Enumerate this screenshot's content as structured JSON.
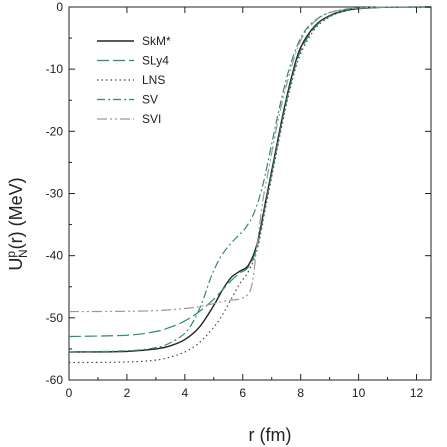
{
  "chart_data": {
    "type": "line",
    "title": "",
    "xlabel": "r (fm)",
    "ylabel_parts": {
      "base": "U",
      "sup": "p",
      "sub": "N",
      "rest": "(r) (MeV)"
    },
    "xlim": [
      0,
      12.5
    ],
    "ylim": [
      -60,
      0
    ],
    "x_ticks": [
      0,
      2,
      4,
      6,
      8,
      10,
      12
    ],
    "y_ticks": [
      0,
      -10,
      -20,
      -30,
      -40,
      -50,
      -60
    ],
    "grid": false,
    "legend_position": "top-left",
    "series": [
      {
        "name": "SkM*",
        "style": "solid",
        "color": "#222222",
        "x": [
          0,
          2,
          3,
          3.5,
          4,
          4.5,
          5,
          5.3,
          5.6,
          5.9,
          6.2,
          6.5,
          6.8,
          7.1,
          7.4,
          7.7,
          8.0,
          8.5,
          9.0,
          9.5,
          10,
          10.5,
          11,
          12.5
        ],
        "y": [
          -55.5,
          -55.4,
          -55,
          -54.5,
          -53.5,
          -51.5,
          -48,
          -45.5,
          -43.5,
          -42.5,
          -41.5,
          -38,
          -31,
          -24,
          -17,
          -11,
          -6.5,
          -3,
          -1.4,
          -0.6,
          -0.25,
          -0.1,
          -0.03,
          0
        ]
      },
      {
        "name": "SLy4",
        "style": "longdash",
        "color": "#2e8b6e",
        "x": [
          0,
          2,
          3,
          3.5,
          4,
          4.5,
          5,
          5.3,
          5.6,
          5.9,
          6.2,
          6.5,
          6.8,
          7.1,
          7.4,
          7.7,
          8.0,
          8.5,
          9.0,
          9.5,
          10,
          10.5,
          11,
          12.5
        ],
        "y": [
          -53,
          -52.8,
          -52.2,
          -51.5,
          -50.5,
          -49,
          -47,
          -45.5,
          -44,
          -42.8,
          -41.8,
          -38.5,
          -31.5,
          -24.5,
          -17.5,
          -11.5,
          -7,
          -3.2,
          -1.5,
          -0.7,
          -0.3,
          -0.12,
          -0.04,
          0
        ]
      },
      {
        "name": "LNS",
        "style": "dotted",
        "color": "#444466",
        "x": [
          0,
          2,
          3,
          3.5,
          4,
          4.5,
          5,
          5.3,
          5.6,
          5.9,
          6.2,
          6.5,
          6.8,
          7.1,
          7.4,
          7.7,
          8.0,
          8.5,
          9.0,
          9.5,
          10,
          10.5,
          11,
          12.5
        ],
        "y": [
          -57.2,
          -57.1,
          -56.8,
          -56.3,
          -55.5,
          -54,
          -51.5,
          -49.5,
          -47,
          -44.5,
          -42.5,
          -39,
          -32,
          -25,
          -18,
          -12,
          -7.5,
          -3.5,
          -1.6,
          -0.7,
          -0.3,
          -0.12,
          -0.04,
          0
        ]
      },
      {
        "name": "SV",
        "style": "dashdot",
        "color": "#2e8b6e",
        "x": [
          0,
          2,
          3,
          3.5,
          4,
          4.3,
          4.6,
          4.9,
          5.2,
          5.5,
          5.8,
          6.1,
          6.4,
          6.7,
          7.0,
          7.3,
          7.6,
          7.9,
          8.2,
          8.6,
          9.0,
          9.5,
          10,
          10.5,
          11,
          12.5
        ],
        "y": [
          -55.5,
          -55.3,
          -54.8,
          -54,
          -52.5,
          -50.5,
          -47.5,
          -43.5,
          -40.5,
          -38.5,
          -37,
          -35.5,
          -33,
          -28.5,
          -22,
          -15.5,
          -10,
          -6,
          -3.5,
          -1.8,
          -0.9,
          -0.4,
          -0.15,
          -0.06,
          -0.02,
          0
        ]
      },
      {
        "name": "SVI",
        "style": "dashdotdot",
        "color": "#999999",
        "x": [
          0,
          2,
          3,
          3.5,
          4,
          4.5,
          5,
          5.5,
          6.0,
          6.3,
          6.5,
          6.7,
          6.9,
          7.1,
          7.3,
          7.6,
          7.9,
          8.2,
          8.6,
          9.0,
          9.5,
          10,
          10.5,
          11,
          12.5
        ],
        "y": [
          -49,
          -48.95,
          -48.85,
          -48.7,
          -48.5,
          -48.2,
          -47.7,
          -47.2,
          -46.8,
          -45,
          -38,
          -31,
          -26,
          -21,
          -16.5,
          -11,
          -6.5,
          -3.8,
          -1.9,
          -0.9,
          -0.4,
          -0.15,
          -0.06,
          -0.02,
          0
        ]
      }
    ]
  }
}
